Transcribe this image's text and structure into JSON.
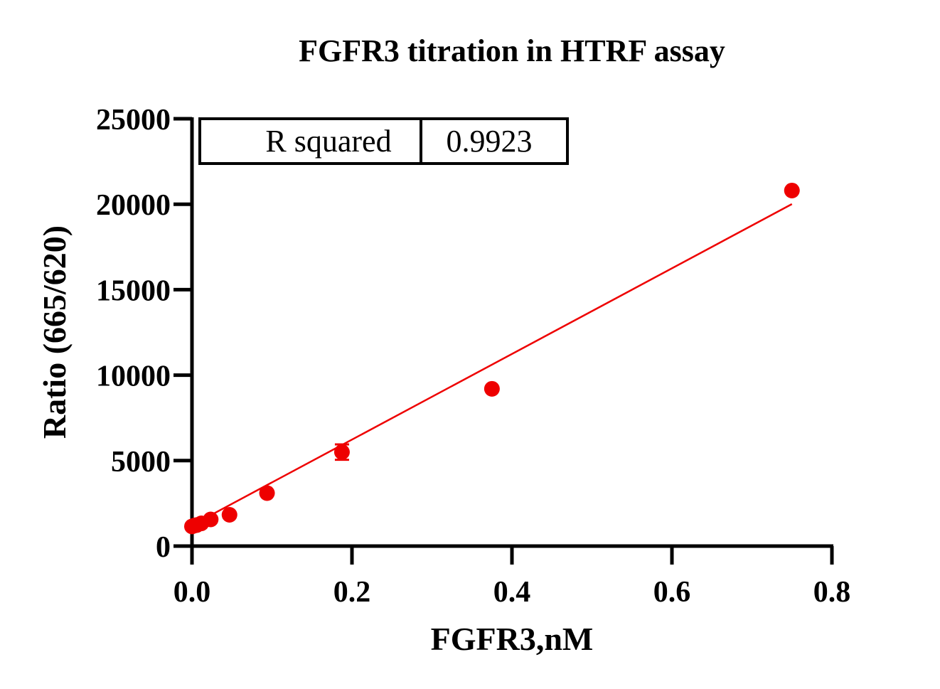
{
  "chart_data": {
    "type": "scatter",
    "title": "FGFR3 titration in HTRF assay",
    "xlabel": "FGFR3,nM",
    "ylabel": "Ratio (665/620)",
    "xlim": [
      0,
      0.8
    ],
    "ylim": [
      0,
      25000
    ],
    "x_ticks": [
      "0.0",
      "0.2",
      "0.4",
      "0.6",
      "0.8"
    ],
    "y_ticks": [
      "0",
      "5000",
      "10000",
      "15000",
      "20000",
      "25000"
    ],
    "grid": false,
    "legend": "none",
    "series": [
      {
        "points": [
          {
            "x": 0.0,
            "y": 1150
          },
          {
            "x": 0.0029,
            "y": 1200
          },
          {
            "x": 0.0059,
            "y": 1230
          },
          {
            "x": 0.0117,
            "y": 1330
          },
          {
            "x": 0.0234,
            "y": 1560
          },
          {
            "x": 0.0469,
            "y": 1830
          },
          {
            "x": 0.0938,
            "y": 3100
          },
          {
            "x": 0.1875,
            "y": 5500,
            "err": 450
          },
          {
            "x": 0.375,
            "y": 9200
          },
          {
            "x": 0.75,
            "y": 20800
          }
        ]
      }
    ],
    "fit_line": {
      "x_range": [
        0,
        0.75
      ],
      "slope": 25050,
      "intercept": 1220
    },
    "stats_table": {
      "label": "R squared",
      "value": "0.9923"
    },
    "colors": {
      "series": "#ee0000",
      "axis": "#000000"
    }
  }
}
